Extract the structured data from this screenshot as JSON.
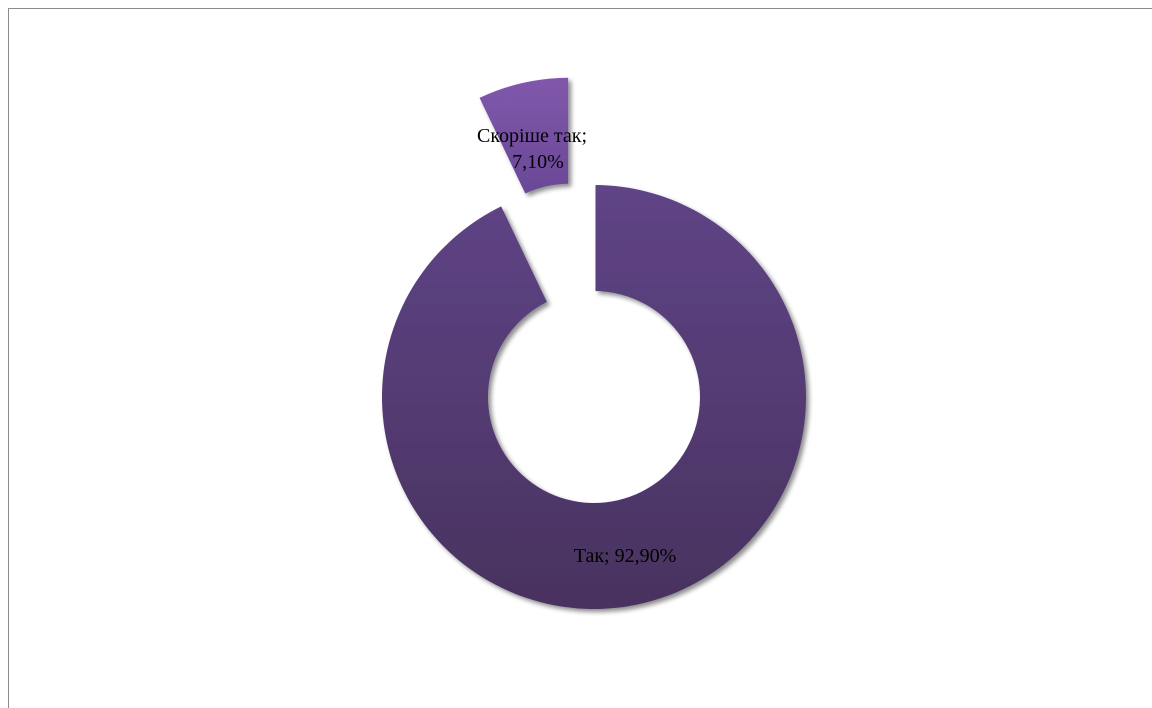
{
  "chart_data": {
    "type": "pie",
    "variant": "doughnut",
    "exploded": true,
    "categories": [
      "Скоріше так",
      "Так"
    ],
    "values": [
      7.1,
      92.9
    ],
    "labels": [
      "Скоріше так;",
      "7,10%",
      "Так; 92,90%"
    ],
    "slice_labels": [
      {
        "lines": [
          "Скоріше так;",
          "7,10%"
        ]
      },
      {
        "lines": [
          "Так; 92,90%"
        ]
      }
    ],
    "colors": [
      "#7a55a3",
      "#5a3f80"
    ],
    "legend": "none"
  }
}
